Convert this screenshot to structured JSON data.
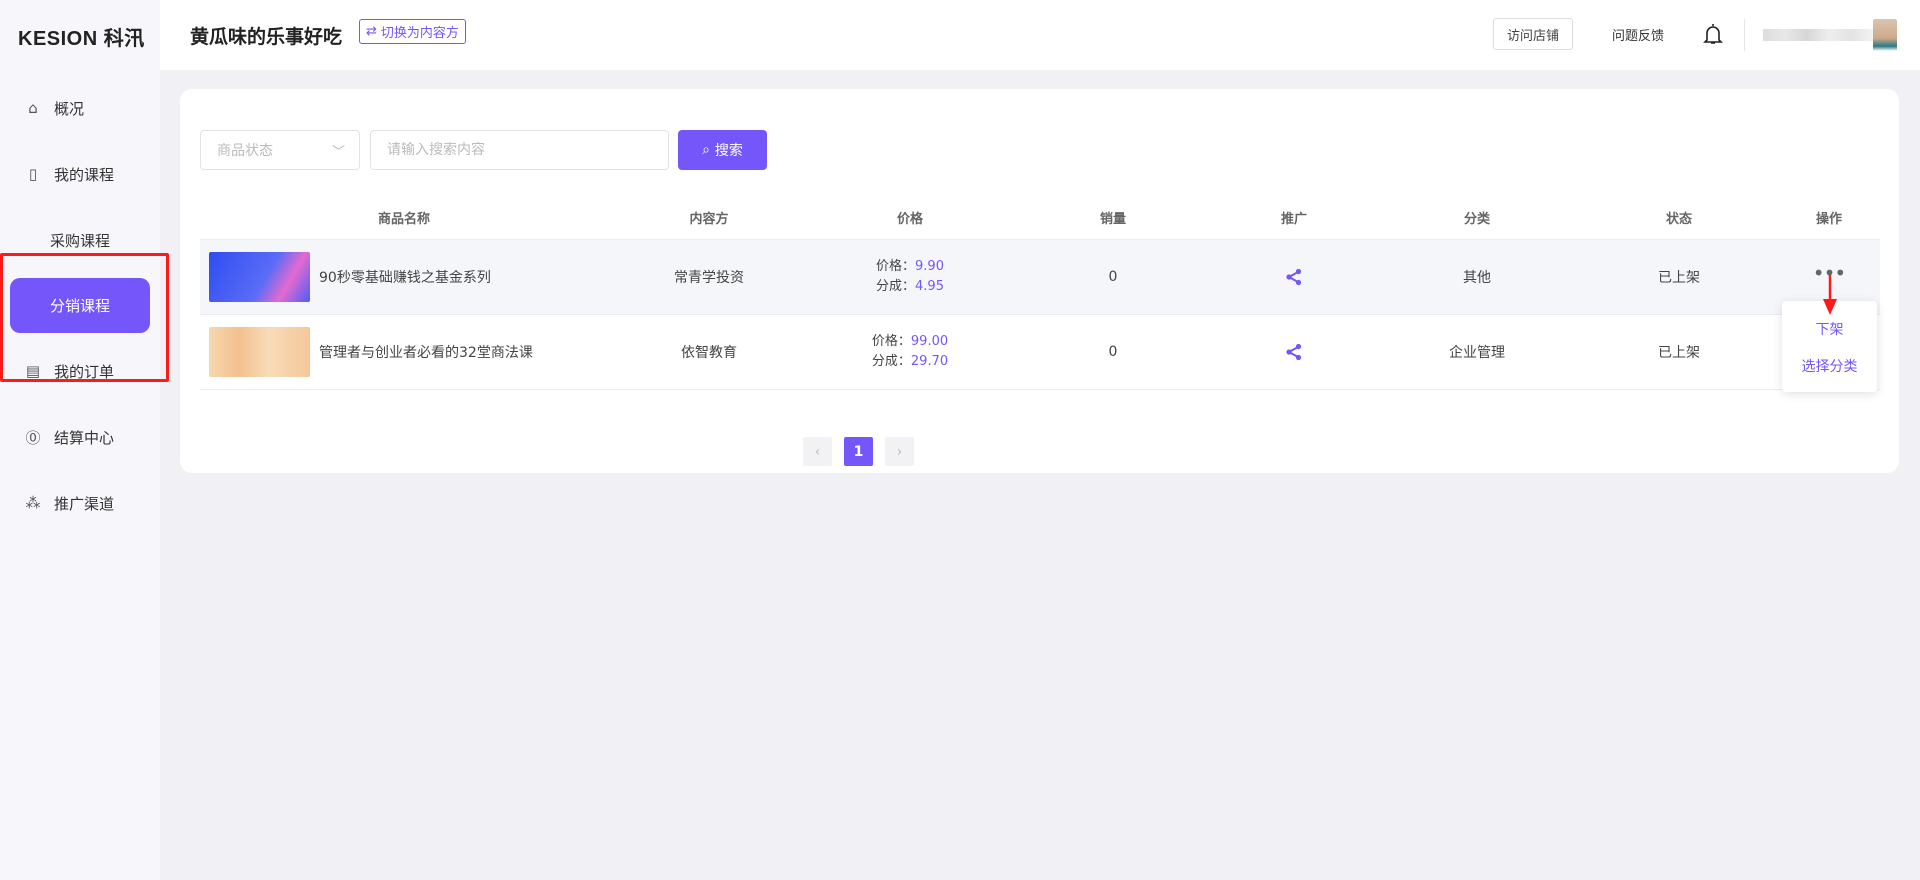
{
  "brand": {
    "logo": "KESION 科汛"
  },
  "sidebar": {
    "items": [
      {
        "label": "概况",
        "icon": "home-icon"
      },
      {
        "label": "我的课程",
        "icon": "book-icon"
      },
      {
        "label": "采购课程"
      },
      {
        "label": "分销课程",
        "active": true
      },
      {
        "label": "我的订单",
        "icon": "order-icon"
      },
      {
        "label": "结算中心",
        "icon": "yen-icon"
      },
      {
        "label": "推广渠道",
        "icon": "channel-icon"
      }
    ]
  },
  "header": {
    "title": "黄瓜味的乐事好吃",
    "switch_label": "切换为内容方",
    "visit_store": "访问店铺",
    "feedback": "问题反馈"
  },
  "filters": {
    "status_placeholder": "商品状态",
    "search_placeholder": "请输入搜索内容",
    "search_button": "搜索"
  },
  "table": {
    "columns": [
      "商品名称",
      "内容方",
      "价格",
      "销量",
      "推广",
      "分类",
      "状态",
      "操作"
    ],
    "price_label": "价格：",
    "share_label": "分成：",
    "rows": [
      {
        "name": "90秒零基础赚钱之基金系列",
        "provider": "常青学投资",
        "price": "9.90",
        "share": "4.95",
        "sales": "0",
        "category": "其他",
        "status": "已上架"
      },
      {
        "name": "管理者与创业者必看的32堂商法课",
        "provider": "依智教育",
        "price": "99.00",
        "share": "29.70",
        "sales": "0",
        "category": "企业管理",
        "status": "已上架"
      }
    ]
  },
  "pagination": {
    "current": "1"
  },
  "action_menu": {
    "items": [
      "下架",
      "选择分类"
    ]
  },
  "colors": {
    "accent": "#7556fa",
    "highlight": "#ff1a1a"
  }
}
